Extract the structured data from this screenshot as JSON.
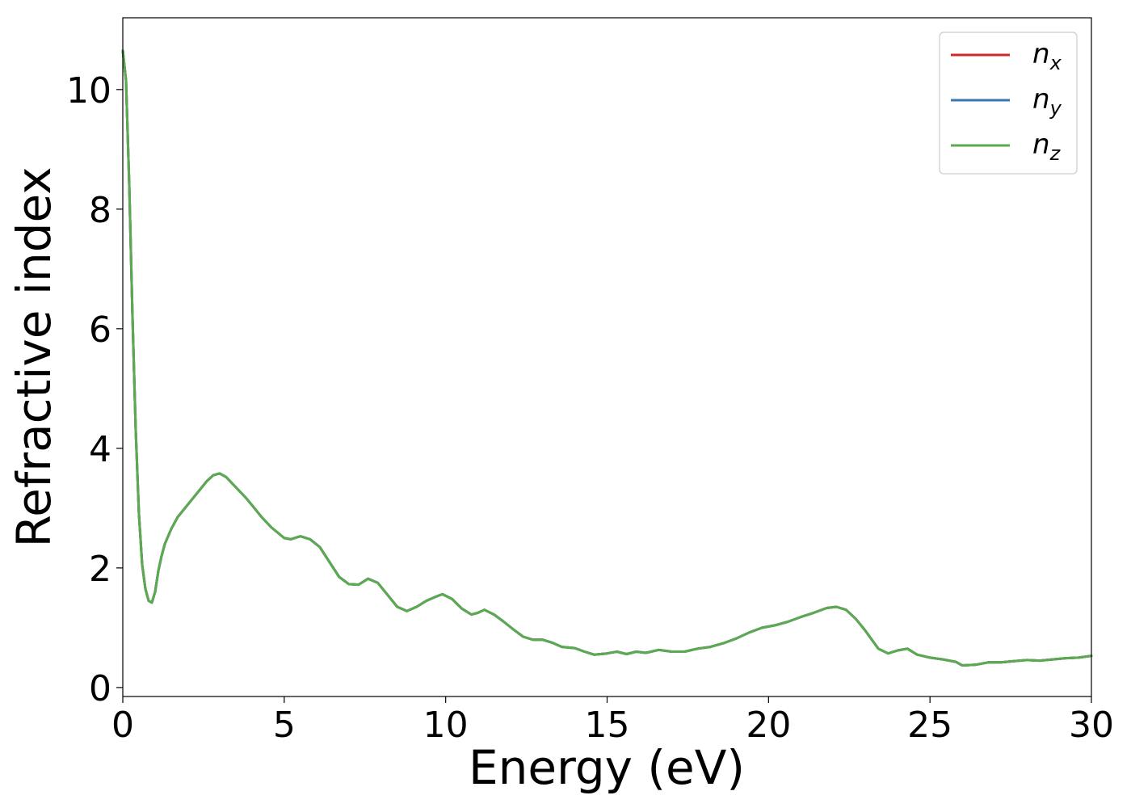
{
  "chart_data": {
    "type": "line",
    "xlabel": "Energy (eV)",
    "ylabel": "Refractive index",
    "xlim": [
      0,
      30
    ],
    "ylim": [
      -0.15,
      11.2
    ],
    "xticks": [
      0,
      5,
      10,
      15,
      20,
      25,
      30
    ],
    "yticks": [
      0,
      2,
      4,
      6,
      8,
      10
    ],
    "xtick_labels": [
      "0",
      "5",
      "10",
      "15",
      "20",
      "25",
      "30"
    ],
    "ytick_labels": [
      "0",
      "2",
      "4",
      "6",
      "8",
      "10"
    ],
    "grid": false,
    "legend_position": "top-right",
    "x": [
      0.0,
      0.1,
      0.2,
      0.3,
      0.4,
      0.5,
      0.6,
      0.7,
      0.8,
      0.9,
      1.0,
      1.1,
      1.2,
      1.3,
      1.5,
      1.7,
      2.0,
      2.3,
      2.6,
      2.8,
      3.0,
      3.2,
      3.5,
      3.8,
      4.0,
      4.3,
      4.6,
      5.0,
      5.2,
      5.5,
      5.8,
      6.1,
      6.4,
      6.7,
      7.0,
      7.3,
      7.6,
      7.9,
      8.2,
      8.5,
      8.8,
      9.1,
      9.4,
      9.7,
      9.9,
      10.2,
      10.5,
      10.8,
      11.0,
      11.2,
      11.5,
      11.8,
      12.1,
      12.4,
      12.7,
      13.0,
      13.3,
      13.6,
      14.0,
      14.3,
      14.6,
      15.0,
      15.3,
      15.6,
      15.9,
      16.2,
      16.6,
      17.0,
      17.4,
      17.8,
      18.2,
      18.6,
      19.0,
      19.4,
      19.8,
      20.2,
      20.6,
      21.0,
      21.4,
      21.8,
      22.1,
      22.4,
      22.7,
      23.0,
      23.2,
      23.4,
      23.7,
      24.0,
      24.3,
      24.6,
      25.0,
      25.4,
      25.8,
      26.0,
      26.4,
      26.8,
      27.2,
      27.6,
      28.0,
      28.4,
      28.8,
      29.2,
      29.6,
      30.0
    ],
    "series": [
      {
        "name": "n_x",
        "color": "#d62728",
        "values": [
          10.65,
          10.15,
          8.4,
          6.2,
          4.3,
          2.9,
          2.05,
          1.65,
          1.45,
          1.42,
          1.6,
          1.95,
          2.2,
          2.4,
          2.65,
          2.85,
          3.05,
          3.25,
          3.45,
          3.55,
          3.58,
          3.52,
          3.35,
          3.18,
          3.05,
          2.85,
          2.68,
          2.5,
          2.48,
          2.53,
          2.48,
          2.35,
          2.1,
          1.85,
          1.73,
          1.72,
          1.82,
          1.75,
          1.55,
          1.35,
          1.28,
          1.35,
          1.45,
          1.52,
          1.56,
          1.48,
          1.32,
          1.22,
          1.25,
          1.3,
          1.22,
          1.1,
          0.97,
          0.85,
          0.8,
          0.8,
          0.75,
          0.68,
          0.66,
          0.6,
          0.55,
          0.57,
          0.6,
          0.56,
          0.6,
          0.58,
          0.63,
          0.6,
          0.6,
          0.65,
          0.68,
          0.74,
          0.82,
          0.92,
          1.0,
          1.04,
          1.1,
          1.18,
          1.25,
          1.33,
          1.35,
          1.3,
          1.15,
          0.95,
          0.8,
          0.65,
          0.57,
          0.62,
          0.65,
          0.55,
          0.5,
          0.47,
          0.43,
          0.37,
          0.38,
          0.42,
          0.42,
          0.44,
          0.46,
          0.45,
          0.47,
          0.49,
          0.5,
          0.53
        ]
      },
      {
        "name": "n_y",
        "color": "#3a76b2",
        "values": [
          10.65,
          10.15,
          8.4,
          6.2,
          4.3,
          2.9,
          2.05,
          1.65,
          1.45,
          1.42,
          1.6,
          1.95,
          2.2,
          2.4,
          2.65,
          2.85,
          3.05,
          3.25,
          3.45,
          3.55,
          3.58,
          3.52,
          3.35,
          3.18,
          3.05,
          2.85,
          2.68,
          2.5,
          2.48,
          2.53,
          2.48,
          2.35,
          2.1,
          1.85,
          1.73,
          1.72,
          1.82,
          1.75,
          1.55,
          1.35,
          1.28,
          1.35,
          1.45,
          1.52,
          1.56,
          1.48,
          1.32,
          1.22,
          1.25,
          1.3,
          1.22,
          1.1,
          0.97,
          0.85,
          0.8,
          0.8,
          0.75,
          0.68,
          0.66,
          0.6,
          0.55,
          0.57,
          0.6,
          0.56,
          0.6,
          0.58,
          0.63,
          0.6,
          0.6,
          0.65,
          0.68,
          0.74,
          0.82,
          0.92,
          1.0,
          1.04,
          1.1,
          1.18,
          1.25,
          1.33,
          1.35,
          1.3,
          1.15,
          0.95,
          0.8,
          0.65,
          0.57,
          0.62,
          0.65,
          0.55,
          0.5,
          0.47,
          0.43,
          0.37,
          0.38,
          0.42,
          0.42,
          0.44,
          0.46,
          0.45,
          0.47,
          0.49,
          0.5,
          0.53
        ]
      },
      {
        "name": "n_z",
        "color": "#5aaa50",
        "values": [
          10.65,
          10.15,
          8.4,
          6.2,
          4.3,
          2.9,
          2.05,
          1.65,
          1.45,
          1.42,
          1.6,
          1.95,
          2.2,
          2.4,
          2.65,
          2.85,
          3.05,
          3.25,
          3.45,
          3.55,
          3.58,
          3.52,
          3.35,
          3.18,
          3.05,
          2.85,
          2.68,
          2.5,
          2.48,
          2.53,
          2.48,
          2.35,
          2.1,
          1.85,
          1.73,
          1.72,
          1.82,
          1.75,
          1.55,
          1.35,
          1.28,
          1.35,
          1.45,
          1.52,
          1.56,
          1.48,
          1.32,
          1.22,
          1.25,
          1.3,
          1.22,
          1.1,
          0.97,
          0.85,
          0.8,
          0.8,
          0.75,
          0.68,
          0.66,
          0.6,
          0.55,
          0.57,
          0.6,
          0.56,
          0.6,
          0.58,
          0.63,
          0.6,
          0.6,
          0.65,
          0.68,
          0.74,
          0.82,
          0.92,
          1.0,
          1.04,
          1.1,
          1.18,
          1.25,
          1.33,
          1.35,
          1.3,
          1.15,
          0.95,
          0.8,
          0.65,
          0.57,
          0.62,
          0.65,
          0.55,
          0.5,
          0.47,
          0.43,
          0.37,
          0.38,
          0.42,
          0.42,
          0.44,
          0.46,
          0.45,
          0.47,
          0.49,
          0.5,
          0.53
        ]
      }
    ],
    "legend": [
      {
        "base": "n",
        "sub": "x"
      },
      {
        "base": "n",
        "sub": "y"
      },
      {
        "base": "n",
        "sub": "z"
      }
    ]
  }
}
